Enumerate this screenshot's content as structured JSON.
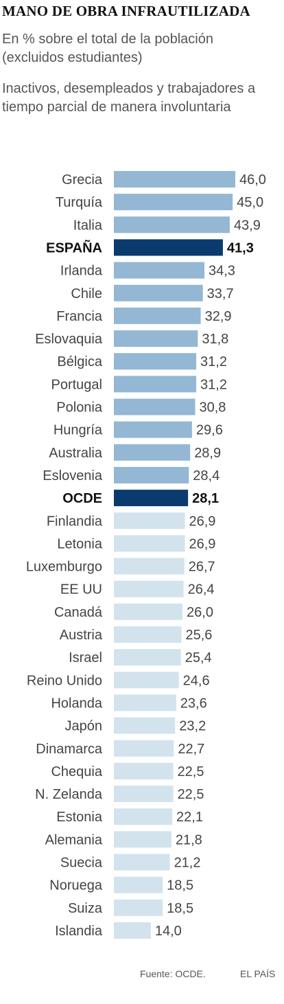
{
  "header": {
    "title": "MANO DE OBRA INFRAUTILIZADA",
    "subtitle": "En % sobre el total de la población (excluidos estudiantes)",
    "note": "Inactivos, desempleados y trabajadores a tiempo parcial de manera involuntaria"
  },
  "footer": {
    "source": "Fuente: OCDE.",
    "brand": "EL PAÍS"
  },
  "colors": {
    "high": "#94b7d3",
    "low": "#d2e3ed",
    "highlight": "#0b3a6e"
  },
  "chart_data": {
    "type": "bar",
    "orientation": "horizontal",
    "categories": [
      "Grecia",
      "Turquía",
      "Italia",
      "ESPAÑA",
      "Irlanda",
      "Chile",
      "Francia",
      "Eslovaquia",
      "Bélgica",
      "Portugal",
      "Polonia",
      "Hungría",
      "Australia",
      "Eslovenia",
      "OCDE",
      "Finlandia",
      "Letonia",
      "Luxemburgo",
      "EE UU",
      "Canadá",
      "Austria",
      "Israel",
      "Reino Unido",
      "Holanda",
      "Japón",
      "Dinamarca",
      "Chequia",
      "N. Zelanda",
      "Estonia",
      "Alemania",
      "Suecia",
      "Noruega",
      "Suiza",
      "Islandia"
    ],
    "values": [
      46.0,
      45.0,
      43.9,
      41.3,
      34.3,
      33.7,
      32.9,
      31.8,
      31.2,
      31.2,
      30.8,
      29.6,
      28.9,
      28.4,
      28.1,
      26.9,
      26.9,
      26.7,
      26.4,
      26.0,
      25.6,
      25.4,
      24.6,
      23.6,
      23.2,
      22.7,
      22.5,
      22.5,
      22.1,
      21.8,
      21.2,
      18.5,
      18.5,
      14.0
    ],
    "value_labels": [
      "46,0",
      "45,0",
      "43,9",
      "41,3",
      "34,3",
      "33,7",
      "32,9",
      "31,8",
      "31,2",
      "31,2",
      "30,8",
      "29,6",
      "28,9",
      "28,4",
      "28,1",
      "26,9",
      "26,9",
      "26,7",
      "26,4",
      "26,0",
      "25,6",
      "25,4",
      "24,6",
      "23,6",
      "23,2",
      "22,7",
      "22,5",
      "22,5",
      "22,1",
      "21,8",
      "21,2",
      "18,5",
      "18,5",
      "14,0"
    ],
    "highlighted": [
      "ESPAÑA",
      "OCDE"
    ],
    "grid": false,
    "legend": "none",
    "xlim": [
      0,
      46
    ]
  }
}
